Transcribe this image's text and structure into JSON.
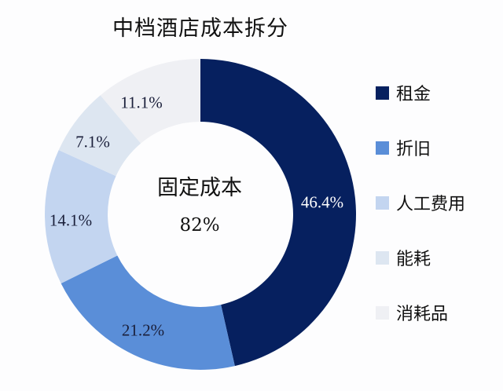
{
  "chart_data": {
    "type": "pie",
    "variant": "donut",
    "title": "中档酒店成本拆分",
    "center_annotation": {
      "label": "固定成本",
      "value": "82%"
    },
    "categories": [
      "租金",
      "折旧",
      "人工费用",
      "能耗",
      "消耗品"
    ],
    "values": [
      46.4,
      21.2,
      14.1,
      7.1,
      11.1
    ],
    "labels": [
      "46.4%",
      "21.2%",
      "14.1%",
      "7.1%",
      "11.1%"
    ],
    "colors": [
      "#06205f",
      "#5a8ed8",
      "#c3d5f0",
      "#dde6f1",
      "#eff0f4"
    ],
    "start_angle": "12 o'clock",
    "direction": "clockwise",
    "legend_position": "right"
  },
  "title": "中档酒店成本拆分",
  "center": {
    "title": "固定成本",
    "value": "82%"
  },
  "legend": [
    {
      "label": "租金",
      "color": "#06205f"
    },
    {
      "label": "折旧",
      "color": "#5a8ed8"
    },
    {
      "label": "人工费用",
      "color": "#c3d5f0"
    },
    {
      "label": "能耗",
      "color": "#dde6f1"
    },
    {
      "label": "消耗品",
      "color": "#eff0f4"
    }
  ],
  "slice_labels": [
    "46.4%",
    "21.2%",
    "14.1%",
    "7.1%",
    "11.1%"
  ]
}
